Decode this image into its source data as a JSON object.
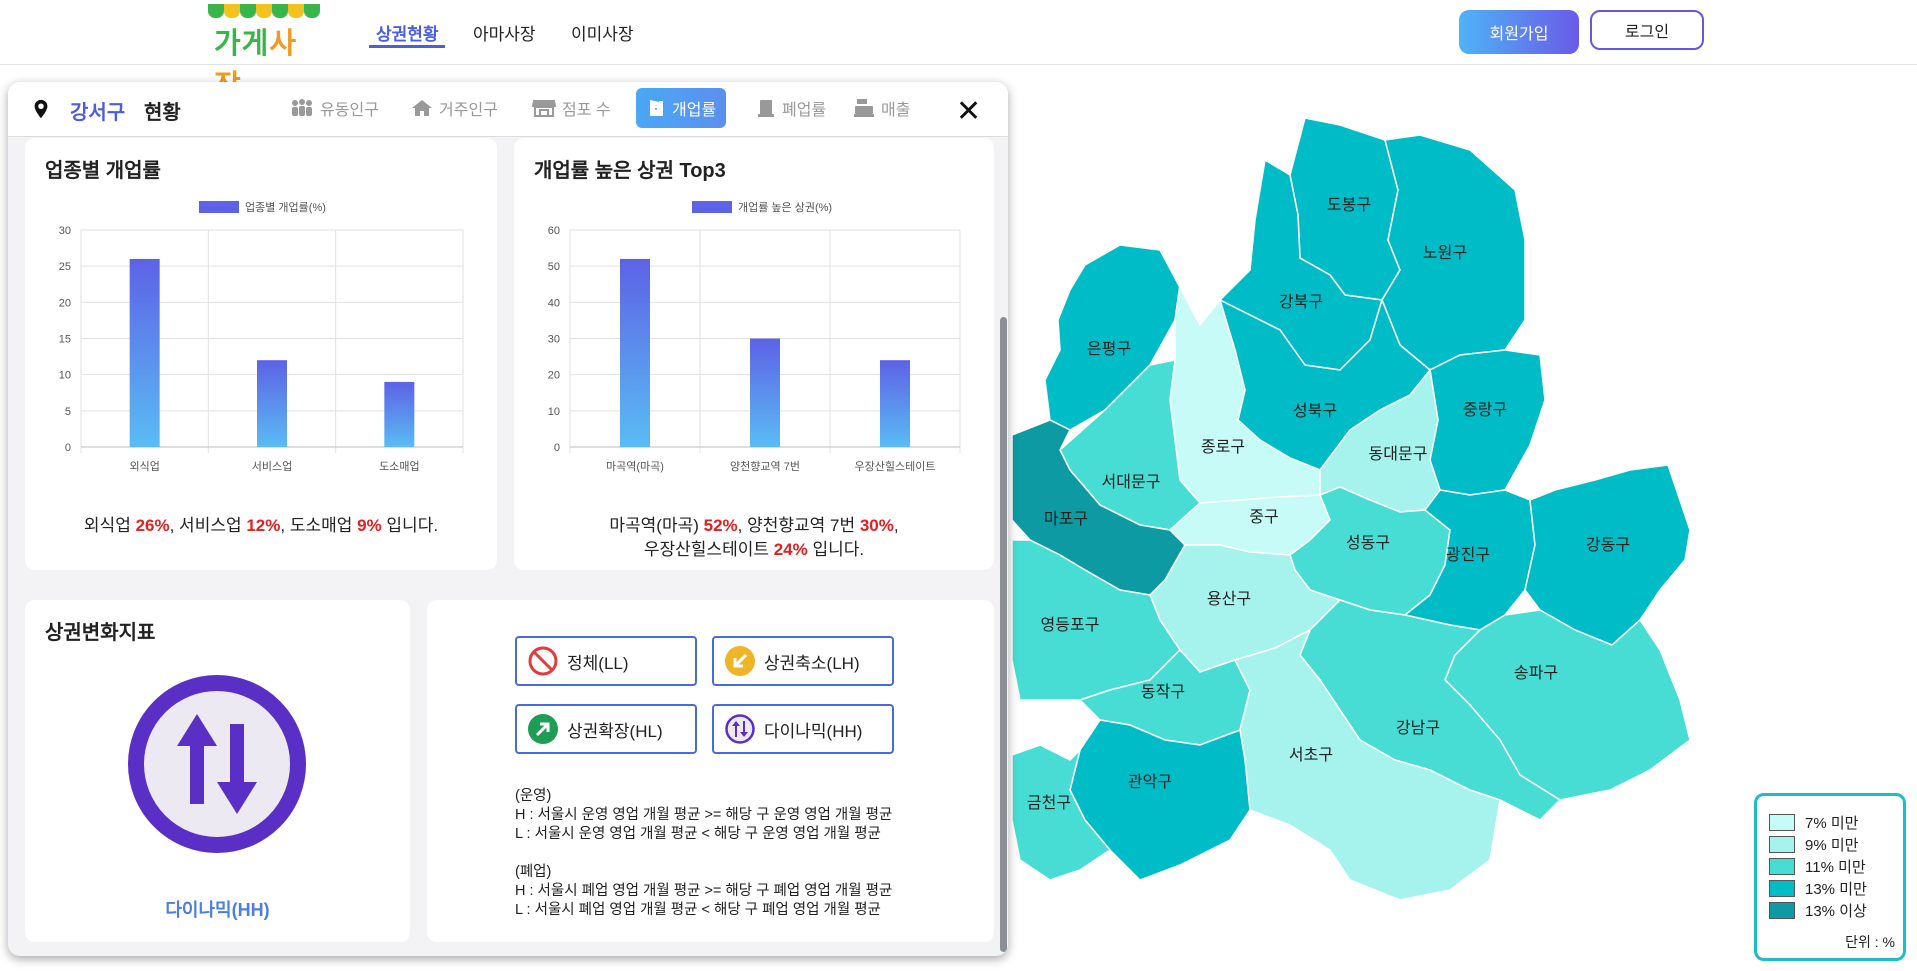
{
  "nav": {
    "logo_text_1": "가게",
    "logo_text_2": "사장",
    "items": [
      {
        "label": "상권현황",
        "active": true
      },
      {
        "label": "아마사장",
        "active": false
      },
      {
        "label": "이미사장",
        "active": false
      }
    ],
    "signup_label": "회원가입",
    "login_label": "로그인"
  },
  "panel": {
    "region": "강서구",
    "status_word": "현황",
    "tabs": [
      {
        "label": "유동인구",
        "icon": "people-icon",
        "active": false
      },
      {
        "label": "거주인구",
        "icon": "home-icon",
        "active": false
      },
      {
        "label": "점포 수",
        "icon": "store-icon",
        "active": false
      },
      {
        "label": "개업률",
        "icon": "door-open-icon",
        "active": true
      },
      {
        "label": "폐업률",
        "icon": "closed-store-icon",
        "active": false
      },
      {
        "label": "매출",
        "icon": "cash-register-icon",
        "active": false
      }
    ],
    "close_label": "✕"
  },
  "cards": {
    "industry": {
      "title": "업종별 개업률",
      "summary": {
        "p1": "외식업 ",
        "v1": "26%",
        "p2": ", 서비스업 ",
        "v2": "12%",
        "p3": ", 도소매업 ",
        "v3": "9%",
        "p4": " 입니다."
      }
    },
    "top3": {
      "title": "개업률 높은 상권 Top3",
      "summary": {
        "p1": "마곡역(마곡) ",
        "v1": "52%",
        "p2": ", 양천향교역 7번 ",
        "v2": "30%",
        "p3": ",",
        "p4": "우장산힐스테이트 ",
        "v3": "24%",
        "p5": " 입니다."
      }
    },
    "index": {
      "title": "상권변화지표",
      "current": "다이나믹(HH)"
    },
    "indicators": {
      "buttons": [
        {
          "label": "정체(LL)",
          "icon": "no-entry-icon",
          "color": "#e23b3b"
        },
        {
          "label": "상권축소(LH)",
          "icon": "arrow-down-left-icon",
          "color": "#f0b429"
        },
        {
          "label": "상권확장(HL)",
          "icon": "arrow-up-right-icon",
          "color": "#1e9e55"
        },
        {
          "label": "다이나믹(HH)",
          "icon": "up-down-arrows-icon",
          "color": "#5a2fc6"
        }
      ],
      "oper_title": "(운영)",
      "oper_h": "H : 서울시 운영 영업 개월 평균 >= 해당 구 운영 영업 개월 평균",
      "oper_l": "L : 서울시 운영 영업 개월 평균 < 해당 구 운영 영업 개월 평균",
      "close_title": "(폐업)",
      "close_h": "H : 서울시 폐업 영업 개월 평균 >= 해당 구 폐업 영업 개월 평균",
      "close_l": "L : 서울시 폐업 영업 개월 평균 < 해당 구 폐업 영업 개월 평균"
    }
  },
  "chart_data": [
    {
      "type": "bar",
      "title": "업종별 개업률",
      "legend": "업종별 개업률(%)",
      "categories": [
        "외식업",
        "서비스업",
        "도소매업"
      ],
      "values": [
        26,
        12,
        9
      ],
      "ylim": [
        0,
        30
      ],
      "yticks": [
        0,
        5,
        10,
        15,
        20,
        25,
        30
      ],
      "grid": true
    },
    {
      "type": "bar",
      "title": "개업률 높은 상권 Top3",
      "legend": "개업률 높은 상권(%)",
      "categories": [
        "마곡역(마곡)",
        "양천향교역 7번",
        "우장산힐스테이트"
      ],
      "values": [
        52,
        30,
        24
      ],
      "ylim": [
        0,
        60
      ],
      "yticks": [
        0,
        10,
        20,
        30,
        40,
        50,
        60
      ],
      "grid": true
    }
  ],
  "map": {
    "districts": [
      {
        "name": "도봉구",
        "color": "#00bcc6"
      },
      {
        "name": "노원구",
        "color": "#00bcc6"
      },
      {
        "name": "강북구",
        "color": "#00bcc6"
      },
      {
        "name": "은평구",
        "color": "#00bcc6"
      },
      {
        "name": "성북구",
        "color": "#00bcc6"
      },
      {
        "name": "중랑구",
        "color": "#00bcc6"
      },
      {
        "name": "종로구",
        "color": "#c6fbf8"
      },
      {
        "name": "동대문구",
        "color": "#a6f3ee"
      },
      {
        "name": "서대문구",
        "color": "#47ddd4"
      },
      {
        "name": "마포구",
        "color": "#0d9aa2"
      },
      {
        "name": "중구",
        "color": "#c6fbf8"
      },
      {
        "name": "성동구",
        "color": "#47ddd4"
      },
      {
        "name": "광진구",
        "color": "#00bcc6"
      },
      {
        "name": "강동구",
        "color": "#00bcc6"
      },
      {
        "name": "용산구",
        "color": "#a6f3ee"
      },
      {
        "name": "영등포구",
        "color": "#47ddd4"
      },
      {
        "name": "동작구",
        "color": "#47ddd4"
      },
      {
        "name": "송파구",
        "color": "#47ddd4"
      },
      {
        "name": "강남구",
        "color": "#47ddd4"
      },
      {
        "name": "서초구",
        "color": "#a6f3ee"
      },
      {
        "name": "관악구",
        "color": "#00bcc6"
      },
      {
        "name": "금천구",
        "color": "#47ddd4"
      }
    ],
    "legend": [
      {
        "label": "7% 미만",
        "color": "#c6fbf8"
      },
      {
        "label": "9% 미만",
        "color": "#a6f3ee"
      },
      {
        "label": "11% 미만",
        "color": "#47ddd4"
      },
      {
        "label": "13% 미만",
        "color": "#00bcc6"
      },
      {
        "label": "13% 이상",
        "color": "#0d9aa2"
      }
    ],
    "unit": "단위 : %"
  }
}
